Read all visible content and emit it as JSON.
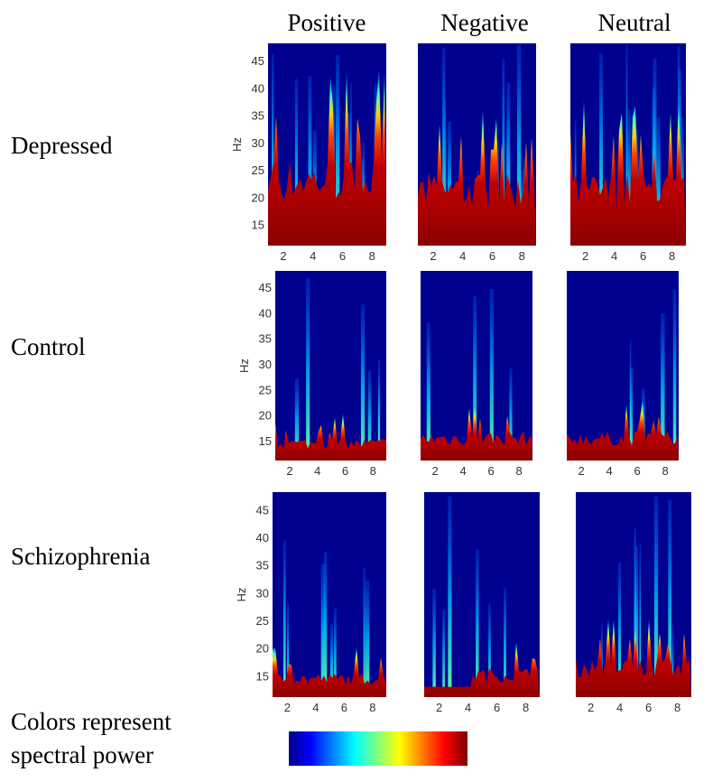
{
  "columns": [
    "Positive",
    "Negative",
    "Neutral"
  ],
  "rows": [
    "Depressed",
    "Control",
    "Schizophrenia"
  ],
  "y_axis_label": "Hz",
  "y_ticks": [
    "15",
    "20",
    "25",
    "30",
    "35",
    "40",
    "45"
  ],
  "x_ticks": [
    "2",
    "4",
    "6",
    "8"
  ],
  "caption": [
    "Colors represent",
    "spectral power"
  ]
}
